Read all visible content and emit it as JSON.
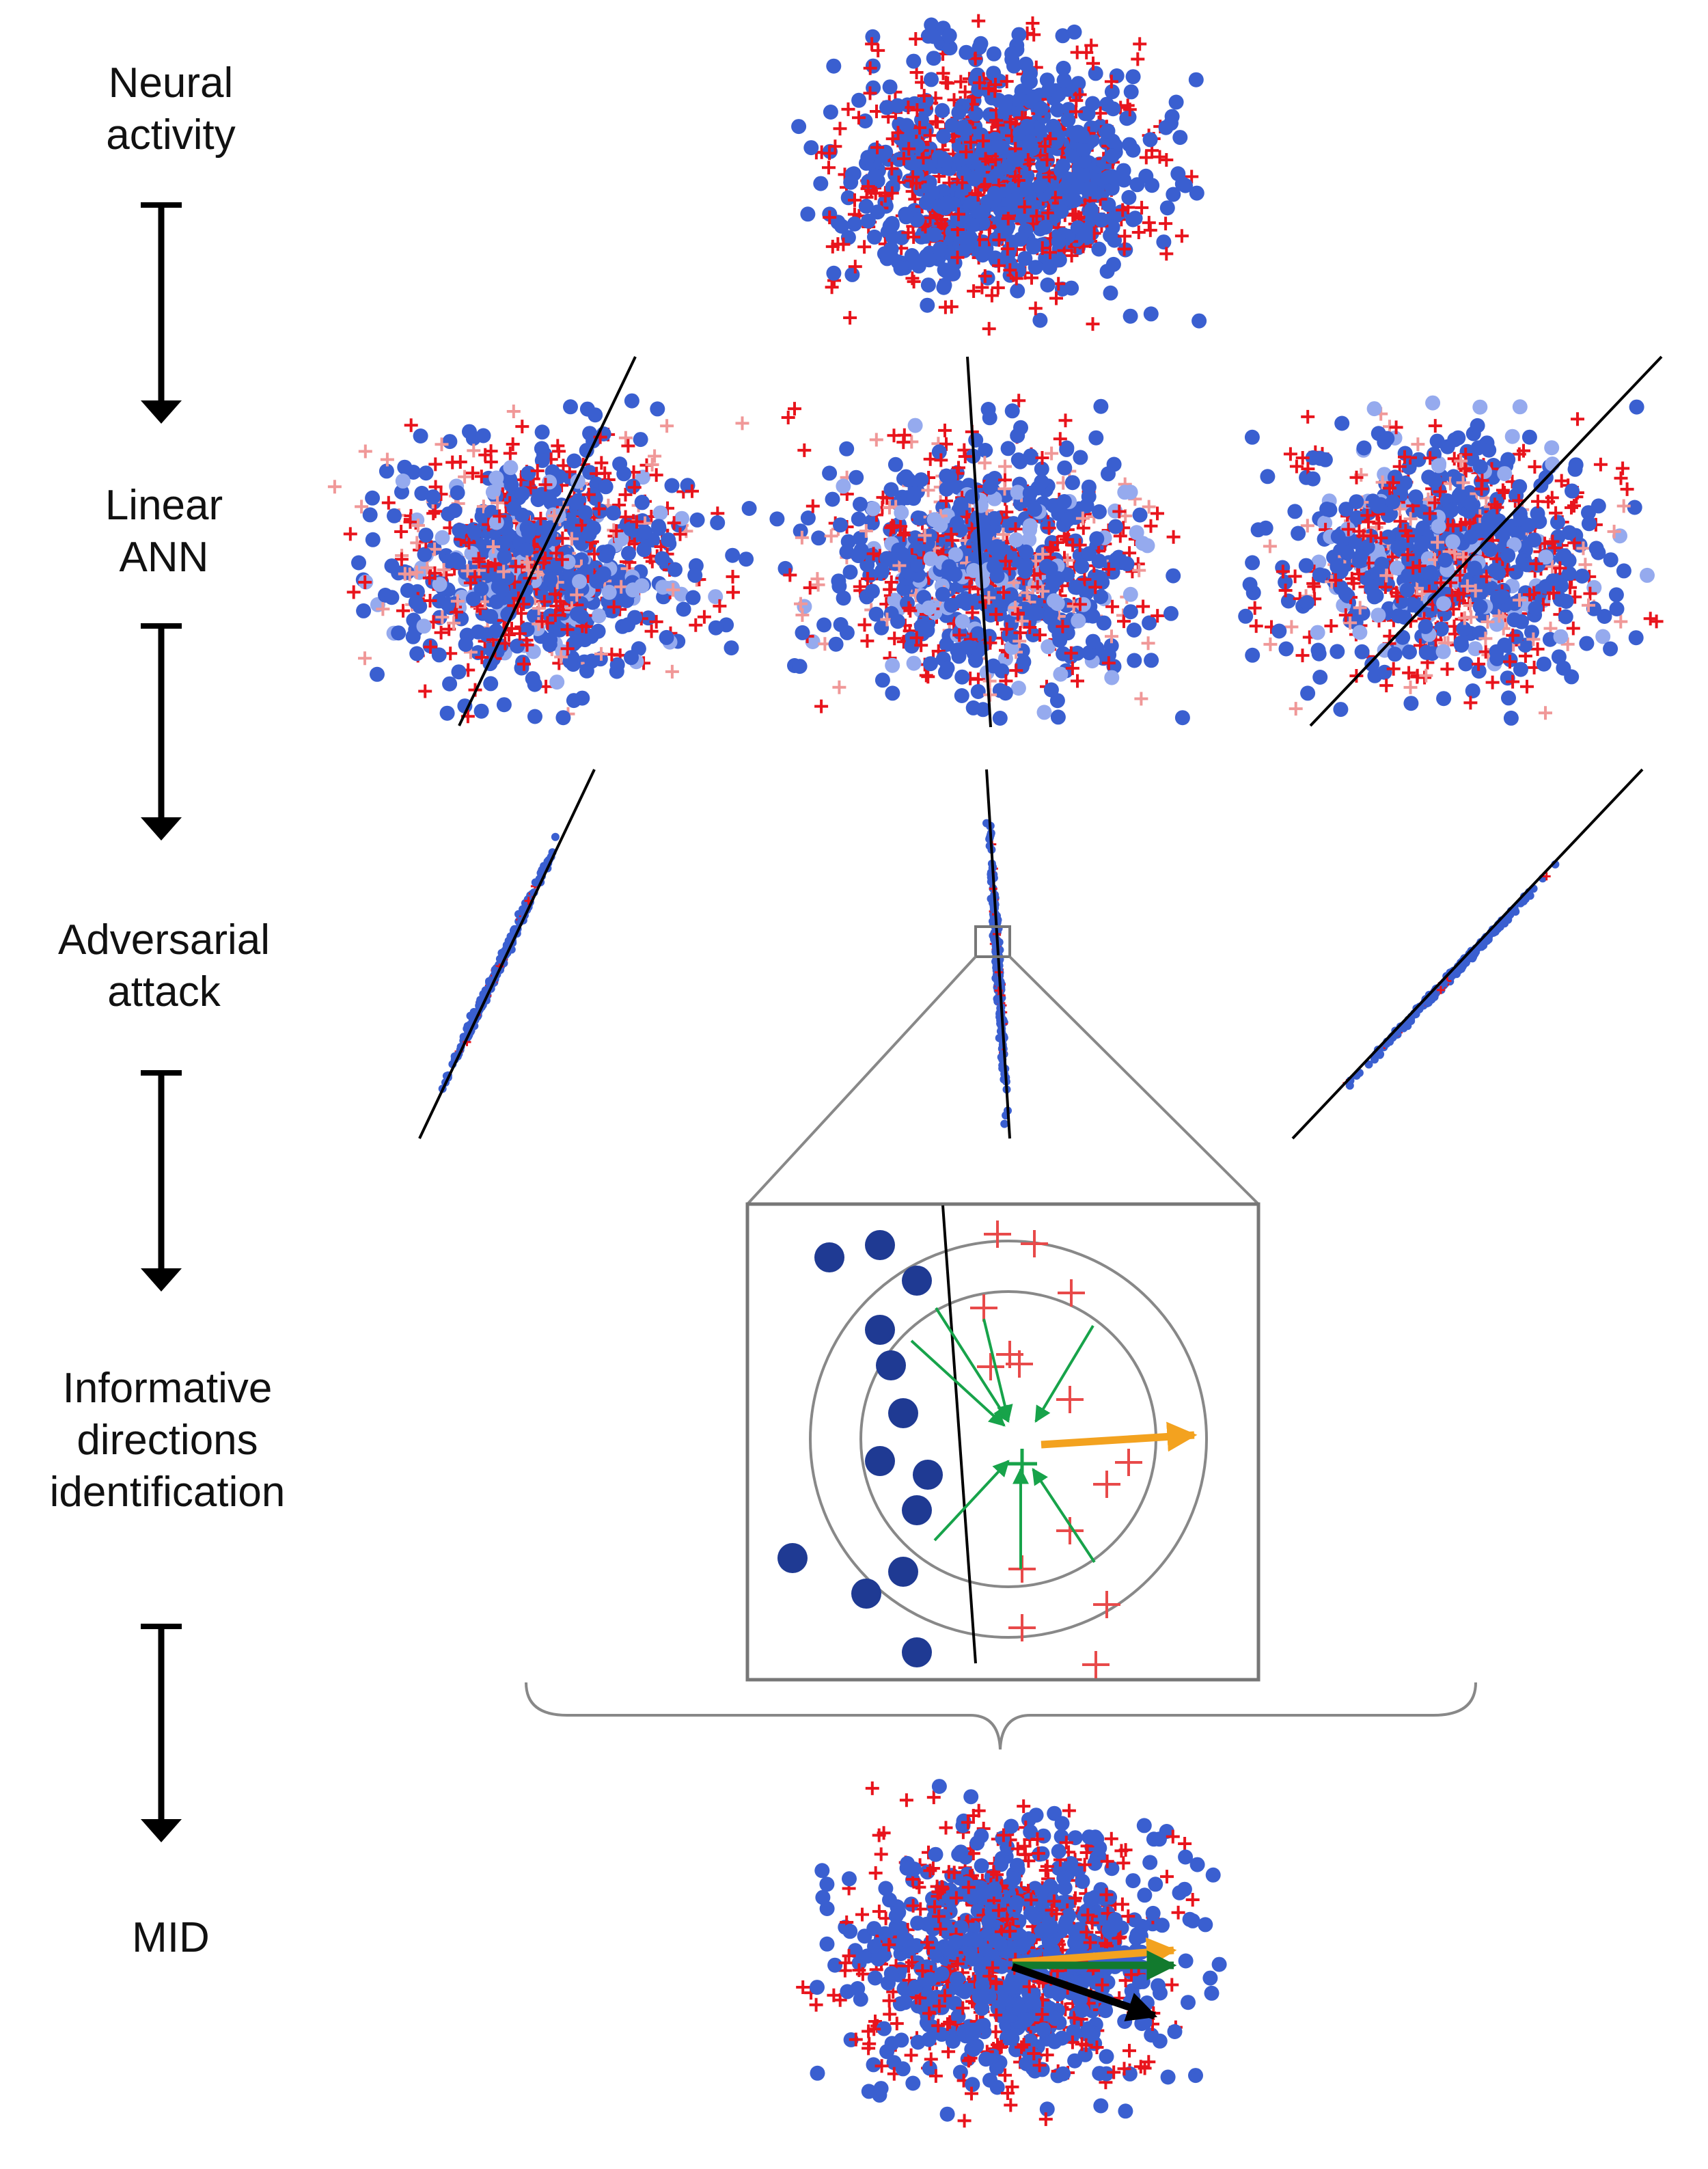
{
  "steps": {
    "neural_activity": "Neural\nactivity",
    "linear_ann": "Linear\nANN",
    "adversarial_attack": "Adversarial\nattack",
    "informative_directions": "Informative\ndirections\nidentification",
    "mid": "MID"
  },
  "colors": {
    "class_dot": "#3a5fd0",
    "class_dot_light": "#95aaee",
    "class_plus": "#e8141c",
    "class_plus_light": "#f09898",
    "zoom_dot": "#1f3a93",
    "zoom_plus": "#e84a4a",
    "gradient_arrow": "#17a34a",
    "mid_direction_arrow": "#f3a21f",
    "decision_line": "#000000",
    "box_outline": "#777777"
  },
  "panels": {
    "linear_ann_count": 3,
    "adversarial_attack_count": 3
  }
}
